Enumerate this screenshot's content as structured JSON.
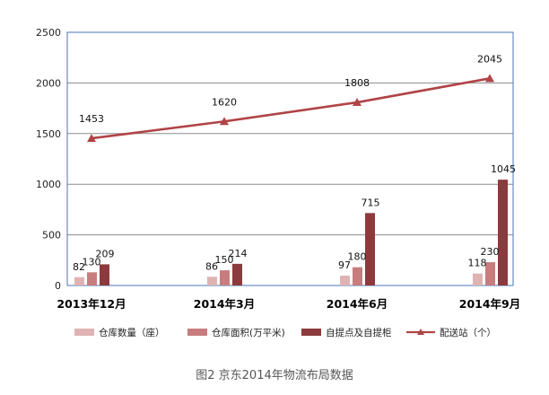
{
  "chart_data": {
    "type": "bar",
    "title": "",
    "xlabel": "",
    "ylabel": "",
    "ylim": [
      0,
      2500
    ],
    "yticks": [
      0,
      500,
      1000,
      1500,
      2000,
      2500
    ],
    "grid": true,
    "legend_position": "bottom",
    "categories": [
      "2013年12月",
      "2014年3月",
      "2014年6月",
      "2014年9月"
    ],
    "series": [
      {
        "name": "仓库数量（座）",
        "kind": "bar",
        "color": "#dfb3b3",
        "values": [
          82,
          86,
          97,
          118
        ]
      },
      {
        "name": "仓库面积(万平米)",
        "kind": "bar",
        "color": "#c77d7d",
        "values": [
          130,
          150,
          180,
          230
        ]
      },
      {
        "name": "自提点及自提柜",
        "kind": "bar",
        "color": "#8c3a3d",
        "values": [
          209,
          214,
          715,
          1045
        ]
      },
      {
        "name": "配送站（个）",
        "kind": "line",
        "color": "#b04447",
        "values": [
          1453,
          1620,
          1808,
          2045
        ]
      }
    ],
    "caption": "图2  京东2014年物流布局数据",
    "colors": {
      "frame": "#4a74b8",
      "grid": "#8c8c8c"
    }
  }
}
